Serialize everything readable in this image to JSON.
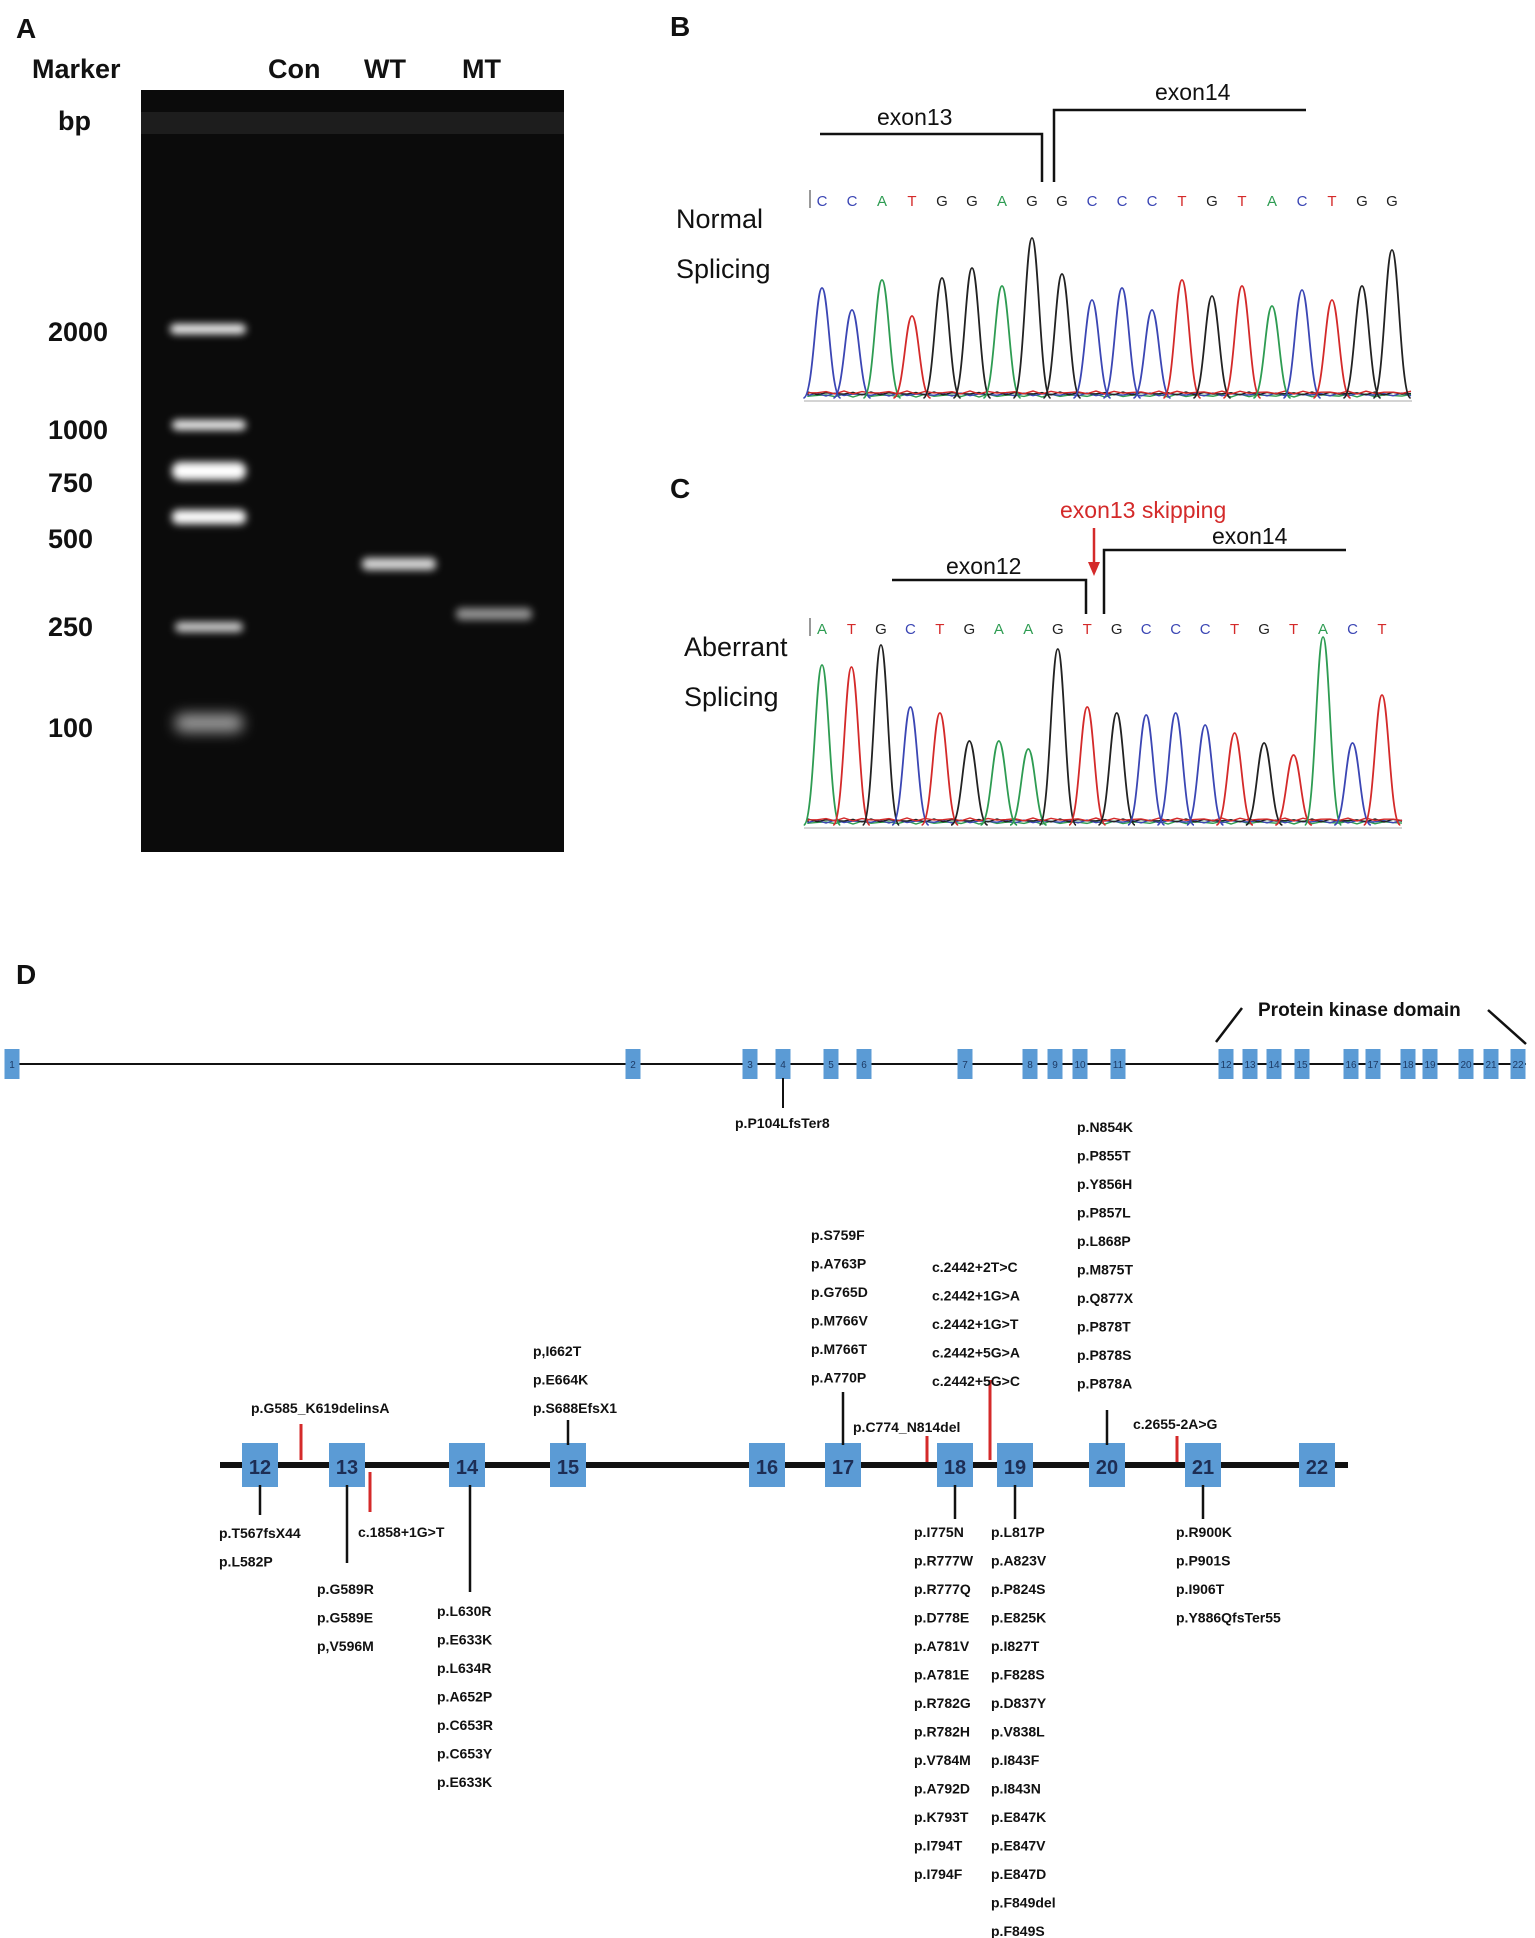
{
  "panels": {
    "a": "A",
    "b": "B",
    "c": "C",
    "d": "D"
  },
  "gel": {
    "headers": {
      "marker": "Marker",
      "con": "Con",
      "wt": "WT",
      "mt": "MT"
    },
    "unit": "bp",
    "ladder": [
      "2000",
      "1000",
      "750",
      "500",
      "250",
      "100"
    ]
  },
  "chrom_b": {
    "left": "exon13",
    "right": "exon14",
    "side1": "Normal",
    "side2": "Splicing",
    "bases": [
      "C",
      "C",
      "A",
      "T",
      "G",
      "G",
      "A",
      "G",
      "G",
      "C",
      "C",
      "C",
      "T",
      "G",
      "T",
      "A",
      "C",
      "T",
      "G",
      "G"
    ]
  },
  "chrom_c": {
    "annotation": "exon13 skipping",
    "left": "exon12",
    "right": "exon14",
    "side1": "Aberrant",
    "side2": "Splicing",
    "bases": [
      "A",
      "T",
      "G",
      "C",
      "T",
      "G",
      "A",
      "A",
      "G",
      "T",
      "G",
      "C",
      "C",
      "C",
      "T",
      "G",
      "T",
      "A",
      "C",
      "T"
    ]
  },
  "base_colors": {
    "A": "#2e9c52",
    "C": "#3b46b4",
    "G": "#222222",
    "T": "#d42a2a"
  },
  "gene": {
    "domain": "Protein kinase domain",
    "exons": [
      "1",
      "2",
      "3",
      "4",
      "5",
      "6",
      "7",
      "8",
      "9",
      "10",
      "11",
      "12",
      "13",
      "14",
      "15",
      "16",
      "17",
      "18",
      "19",
      "20",
      "21",
      "22"
    ],
    "top_mutation": "p.P104LfsTer8"
  },
  "detail": {
    "exons": [
      "12",
      "13",
      "14",
      "15",
      "16",
      "17",
      "18",
      "19",
      "20",
      "21",
      "22"
    ],
    "groups": {
      "g12_below": [
        "p.T567fsX44",
        "p.L582P"
      ],
      "g12_13_above": [
        "p.G585_K619delinsA"
      ],
      "g13_below": [
        "p.G589R",
        "p.G589E",
        "p,V596M"
      ],
      "g13_intron": [
        "c.1858+1G>T"
      ],
      "g14_below": [
        "p.L630R",
        "p.E633K",
        "p.L634R",
        "p.A652P",
        "p.C653R",
        "p.C653Y",
        "p.E633K"
      ],
      "g15_above": [
        "p,I662T",
        "p.E664K",
        "p.S688EfsX1"
      ],
      "g17_above": [
        "p.S759F",
        "p.A763P",
        "p.G765D",
        "p.M766V",
        "p.M766T",
        "p.A770P"
      ],
      "g17_18": [
        "p.C774_N814del"
      ],
      "g18_19_above": [
        "c.2442+2T>C",
        "c.2442+1G>A",
        "c.2442+1G>T",
        "c.2442+5G>A",
        "c.2442+5G>C"
      ],
      "g18_below": [
        "p.I775N",
        "p.R777W",
        "p.R777Q",
        "p.D778E",
        "p.A781V",
        "p.A781E",
        "p.R782G",
        "p.R782H",
        "p.V784M",
        "p.A792D",
        "p.K793T",
        "p.I794T",
        "p.I794F"
      ],
      "g19_below": [
        "p.L817P",
        "p.A823V",
        "p.P824S",
        "p.E825K",
        "p.I827T",
        "p.F828S",
        "p.D837Y",
        "p.V838L",
        "p.I843F",
        "p.I843N",
        "p.E847K",
        "p.E847V",
        "p.E847D",
        "p.F849del",
        "p.F849S"
      ],
      "g20_above": [
        "p.N854K",
        "p.P855T",
        "p.Y856H",
        "p.P857L",
        "p.L868P",
        "p.M875T",
        "p.Q877X",
        "p.P878T",
        "p.P878S",
        "p.P878A"
      ],
      "g20_21": [
        "c.2655-2A>G"
      ],
      "g21_below": [
        "p.R900K",
        "p.P901S",
        "p.I906T",
        "p.Y886QfsTer55"
      ]
    }
  }
}
